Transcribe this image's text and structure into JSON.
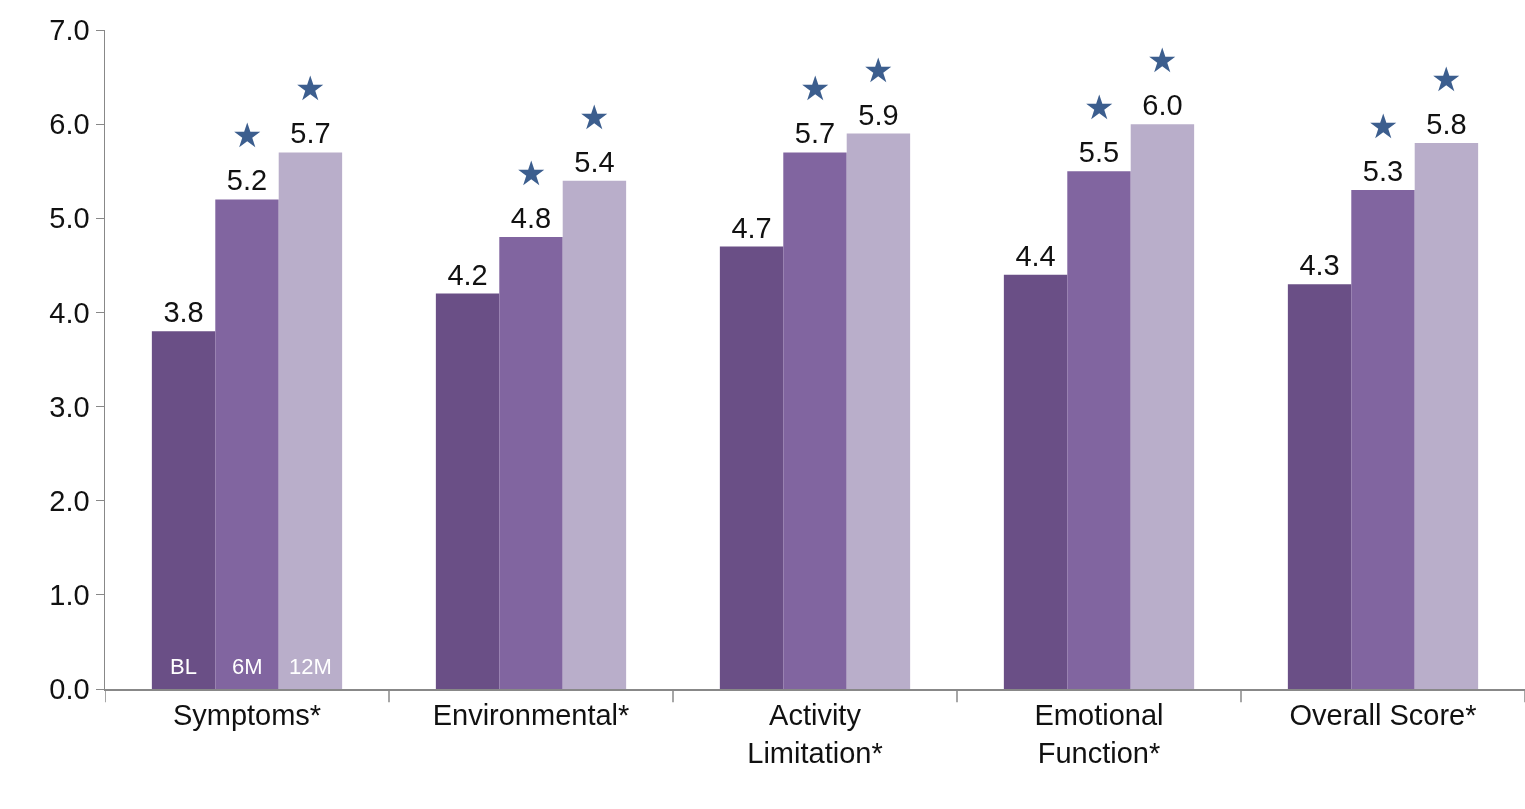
{
  "chart_data": {
    "type": "bar",
    "categories": [
      "Symptoms*",
      "Environmental*",
      "Activity Limitation*",
      "Emotional Function*",
      "Overall Score*"
    ],
    "series": [
      {
        "name": "BL",
        "color": "#6a4f86",
        "values": [
          3.8,
          4.2,
          4.7,
          4.4,
          4.3
        ],
        "value_labels": [
          "3.8",
          "4.2",
          "4.7",
          "4.4",
          "4.3"
        ]
      },
      {
        "name": "6M",
        "color": "#8165a0",
        "values": [
          5.2,
          4.8,
          5.7,
          5.5,
          5.3
        ],
        "value_labels": [
          "5.2",
          "4.8",
          "5.7",
          "5.5",
          "5.3"
        ]
      },
      {
        "name": "12M",
        "color": "#b9aeca",
        "values": [
          5.7,
          5.4,
          5.9,
          6.0,
          5.8
        ],
        "value_labels": [
          "5.7",
          "5.4",
          "5.9",
          "6.0",
          "5.8"
        ]
      }
    ],
    "ylim": [
      0,
      7
    ],
    "yticks": [
      {
        "value": 0,
        "label": "0.0"
      },
      {
        "value": 1,
        "label": "1.0"
      },
      {
        "value": 2,
        "label": "2.0"
      },
      {
        "value": 3,
        "label": "3.0"
      },
      {
        "value": 4,
        "label": "4.0"
      },
      {
        "value": 5,
        "label": "5.0"
      },
      {
        "value": 6,
        "label": "6.0"
      },
      {
        "value": 7,
        "label": "7.0"
      }
    ],
    "grid": false,
    "legend": false,
    "annotations": [
      "★",
      "★",
      "★",
      "★",
      "★",
      "★",
      "★",
      "★",
      "★",
      "★"
    ]
  }
}
